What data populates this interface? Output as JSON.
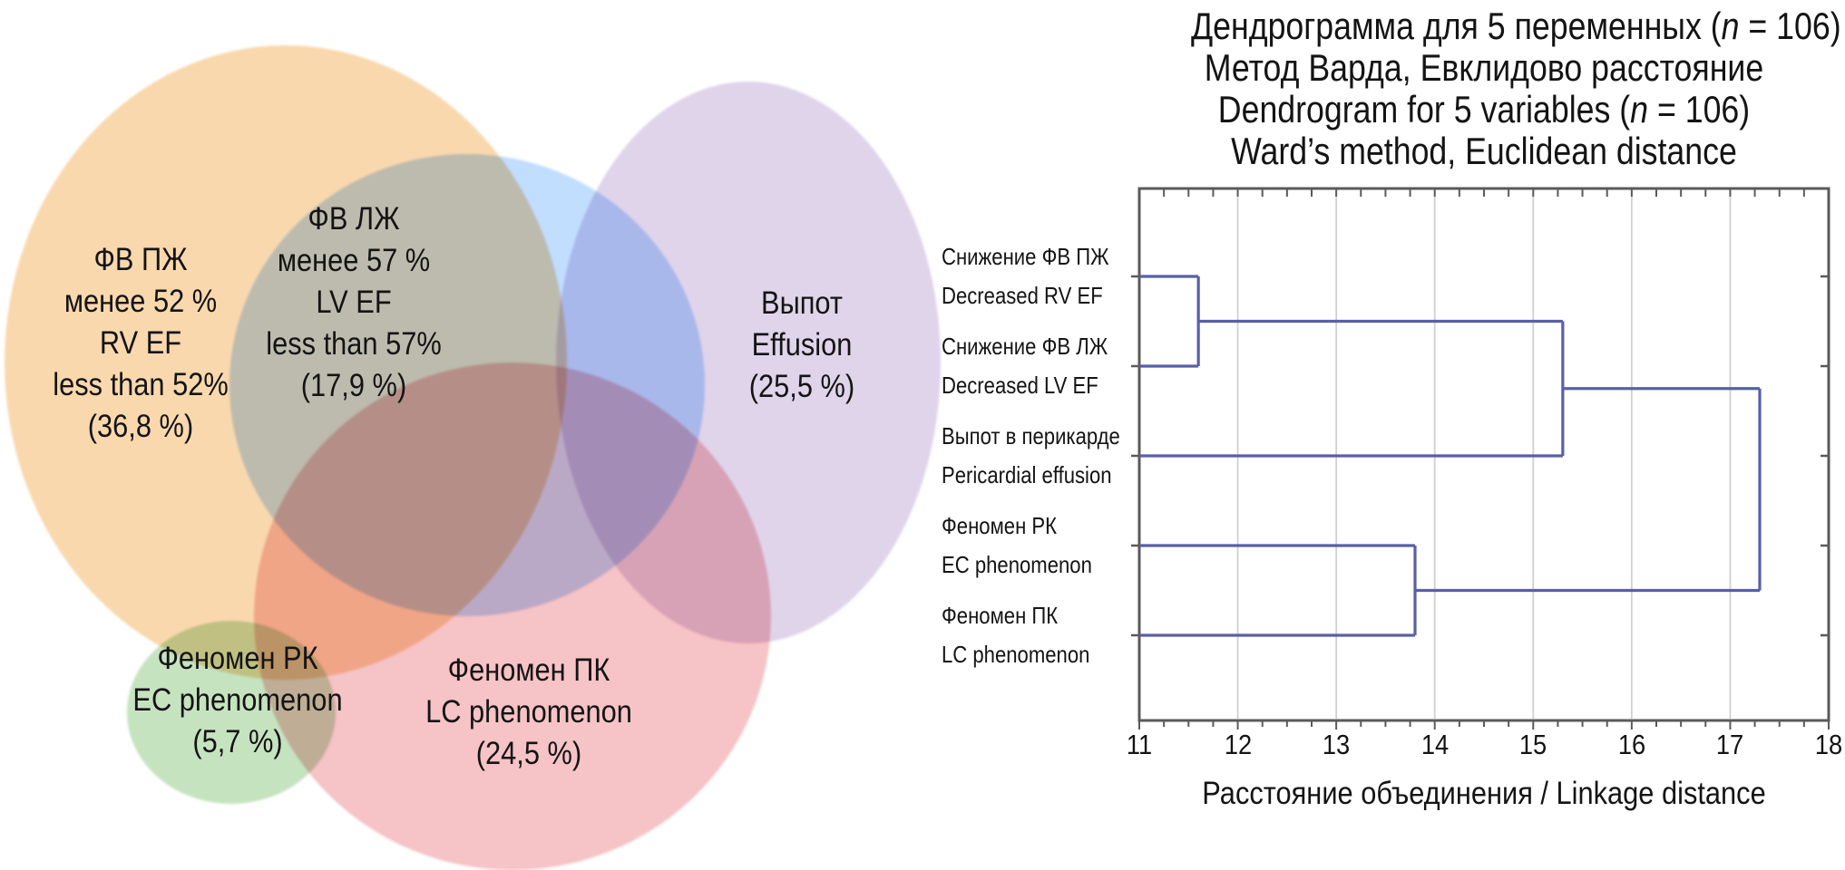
{
  "chart_data": [
    {
      "type": "venn",
      "title": "",
      "sets": [
        {
          "id": "rv-ef",
          "color": "#F9D8AE",
          "lines": [
            "ФВ ПЖ",
            "менее 52 %",
            "RV EF",
            "less than 52%",
            "(36,8 %)"
          ],
          "label_ru": "ФВ ПЖ менее 52 %",
          "label_en": "RV EF less than 52%",
          "value_percent": 36.8
        },
        {
          "id": "lv-ef",
          "color": "#C1DDFF",
          "lines": [
            "ФВ ЛЖ",
            "менее 57 %",
            "LV EF",
            "less than 57%",
            "(17,9 %)"
          ],
          "label_ru": "ФВ ЛЖ менее 57 %",
          "label_en": "LV EF less than 57%",
          "value_percent": 17.9
        },
        {
          "id": "effusion",
          "color": "#E0D4EB",
          "lines": [
            "Выпот",
            "Effusion",
            "(25,5 %)"
          ],
          "label_ru": "Выпот",
          "label_en": "Effusion",
          "value_percent": 25.5
        },
        {
          "id": "ec-phenomenon",
          "color": "#C6E3C0",
          "lines": [
            "Феномен РК",
            "EC phenomenon",
            "(5,7 %)"
          ],
          "label_ru": "Феномен РК",
          "label_en": "EC phenomenon",
          "value_percent": 5.7
        },
        {
          "id": "lc-phenomenon",
          "color": "#F6C3C6",
          "lines": [
            "Феномен ПК",
            "LC phenomenon",
            "(24,5 %)"
          ],
          "label_ru": "Феномен ПК",
          "label_en": "LC phenomenon",
          "value_percent": 24.5
        }
      ]
    },
    {
      "type": "dendrogram",
      "title_lines": [
        "Дендрограмма для 5 переменных (n = 106)",
        "Метод Варда, Евклидово расстояние",
        "Dendrogram for 5 variables (n = 106)",
        "Ward’s method, Euclidean distance"
      ],
      "n": 106,
      "xlabel": "Расстояние объединения / Linkage distance",
      "xlim": [
        11,
        18
      ],
      "xticks": [
        11,
        12,
        13,
        14,
        15,
        16,
        17,
        18
      ],
      "minor_tick_step": 0.25,
      "grid": "vertical-major",
      "legend": "none",
      "leaves": [
        {
          "ru": "Снижение ФВ ПЖ",
          "en": "Decreased RV EF"
        },
        {
          "ru": "Снижение ФВ ЛЖ",
          "en": "Decreased LV EF"
        },
        {
          "ru": "Выпот в перикарде",
          "en": "Pericardial effusion"
        },
        {
          "ru": "Феномен РК",
          "en": "EC phenomenon"
        },
        {
          "ru": "Феномен ПК",
          "en": "LC phenomenon"
        }
      ],
      "linkage": [
        {
          "merges": [
            "leaf-0",
            "leaf-1"
          ],
          "distance": 11.6
        },
        {
          "merges": [
            "node-0",
            "leaf-2"
          ],
          "distance": 15.3
        },
        {
          "merges": [
            "leaf-3",
            "leaf-4"
          ],
          "distance": 13.8
        },
        {
          "merges": [
            "node-1",
            "node-2"
          ],
          "distance": 17.3
        }
      ],
      "line_color": "#5a5fa8",
      "frame_color": "#5a5a5a",
      "grid_color": "#d0d0d0"
    }
  ]
}
